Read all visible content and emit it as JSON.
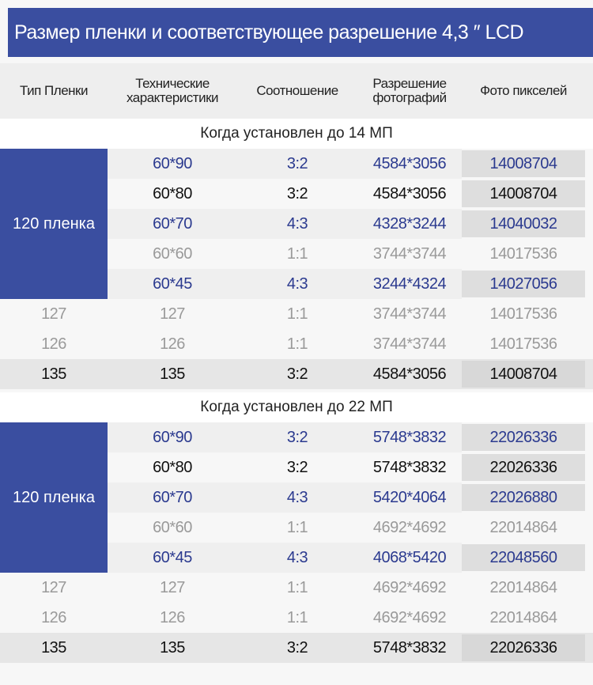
{
  "header": {
    "title": "Размер пленки и соответствующее разрешение 4,3 ″  LCD"
  },
  "table": {
    "columns": [
      "Тип Пленки",
      "Технические\nхарактеристики",
      "Соотношение",
      "Разрешение\nфотографий",
      "Фото пикселей"
    ],
    "sections": [
      {
        "title": "Когда установлен до 14 МП",
        "group_label": "120 пленка",
        "group_rows": [
          [
            "60*90",
            "3:2",
            "4584*3056",
            "14008704"
          ],
          [
            "60*80",
            "3:2",
            "4584*3056",
            "14008704"
          ],
          [
            "60*70",
            "4:3",
            "4328*3244",
            "14040032"
          ],
          [
            "60*60",
            "1:1",
            "3744*3744",
            "14017536"
          ],
          [
            "60*45",
            "4:3",
            "3244*4324",
            "14027056"
          ]
        ],
        "rows": [
          [
            "127",
            "127",
            "1:1",
            "3744*3744",
            "14017536"
          ],
          [
            "126",
            "126",
            "1:1",
            "3744*3744",
            "14017536"
          ],
          [
            "135",
            "135",
            "3:2",
            "4584*3056",
            "14008704"
          ]
        ]
      },
      {
        "title": "Когда установлен до 22 МП",
        "group_label": "120 пленка",
        "group_rows": [
          [
            "60*90",
            "3:2",
            "5748*3832",
            "22026336"
          ],
          [
            "60*80",
            "3:2",
            "5748*3832",
            "22026336"
          ],
          [
            "60*70",
            "4:3",
            "5420*4064",
            "22026880"
          ],
          [
            "60*60",
            "1:1",
            "4692*4692",
            "22014864"
          ],
          [
            "60*45",
            "4:3",
            "4068*5420",
            "22048560"
          ]
        ],
        "rows": [
          [
            "127",
            "127",
            "1:1",
            "4692*4692",
            "22014864"
          ],
          [
            "126",
            "126",
            "1:1",
            "4692*4692",
            "22014864"
          ],
          [
            "135",
            "135",
            "3:2",
            "5748*3832",
            "22026336"
          ]
        ]
      }
    ]
  }
}
